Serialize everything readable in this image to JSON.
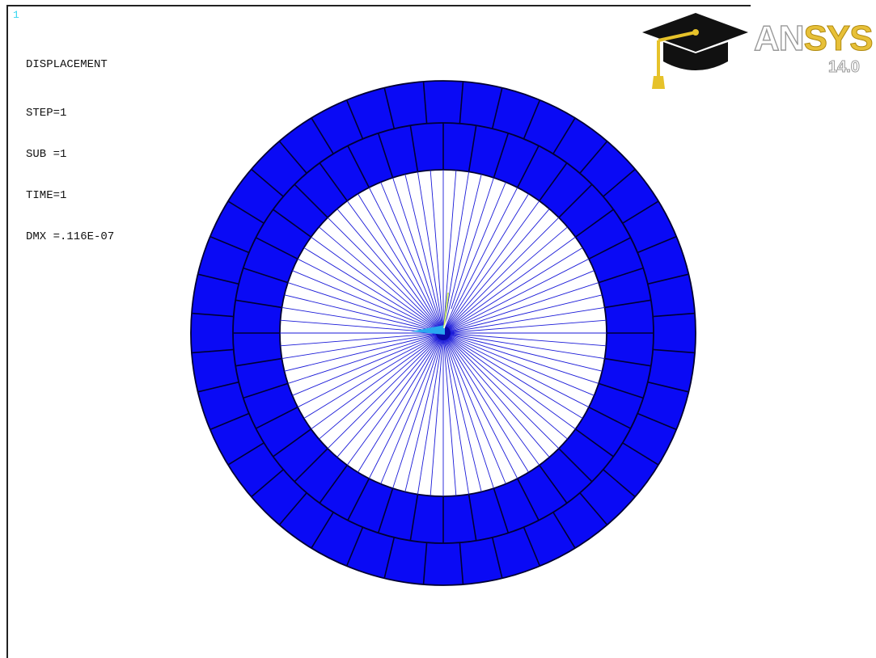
{
  "window": {
    "number": "1"
  },
  "legend": {
    "title": "DISPLACEMENT",
    "lines": [
      "STEP=1",
      "SUB =1",
      "TIME=1",
      "DMX =.116E-07"
    ]
  },
  "logo": {
    "brand_prefix": "AN",
    "brand_suffix": "SYS",
    "version": "14.0",
    "icon": "graduation-cap-icon"
  },
  "model": {
    "ring_segments": 40,
    "ring_layers": 2,
    "spokes": 80,
    "colors": {
      "ring_fill": "#0a0af5",
      "mesh_line": "#000033",
      "spoke": "#1a1ad8",
      "triad_x": "#29a8f0",
      "triad_y": "#c8e860"
    }
  }
}
